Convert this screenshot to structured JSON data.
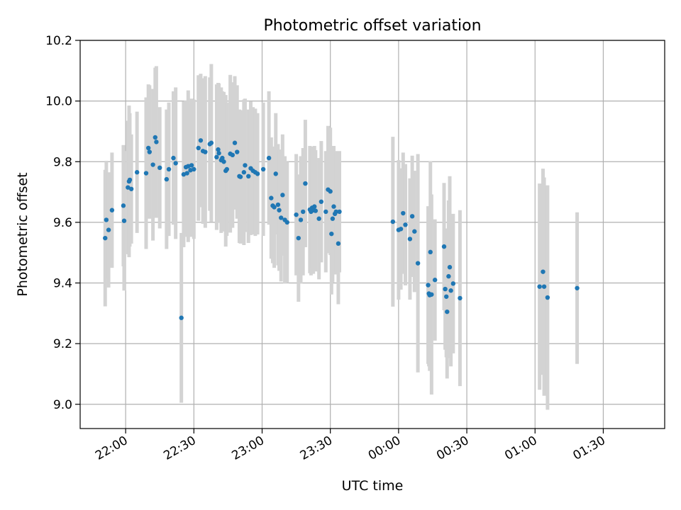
{
  "chart_data": {
    "type": "scatter",
    "title": "Photometric offset variation",
    "xlabel": "UTC time",
    "ylabel": "Photometric offset",
    "x_unit": "HH:MM UTC",
    "xlim": [
      "21:40",
      "01:57"
    ],
    "ylim": [
      8.92,
      10.2
    ],
    "grid": true,
    "xticks": [
      "22:00",
      "22:30",
      "23:00",
      "23:30",
      "00:00",
      "00:30",
      "01:00",
      "01:30"
    ],
    "yticks": [
      "9.0",
      "9.2",
      "9.4",
      "9.6",
      "9.8",
      "10.0",
      "10.2"
    ],
    "colors": {
      "marker": "#1f77b4",
      "errorbar": "#d3d3d3",
      "grid": "#b0b0b0"
    },
    "series": [
      {
        "points": [
          {
            "x": "21:51:00",
            "y": 9.548,
            "err": 0.225
          },
          {
            "x": "21:51:30",
            "y": 9.608,
            "err": 0.195
          },
          {
            "x": "21:52:30",
            "y": 9.575,
            "err": 0.19
          },
          {
            "x": "21:54:00",
            "y": 9.64,
            "err": 0.19
          },
          {
            "x": "21:59:00",
            "y": 9.655,
            "err": 0.2
          },
          {
            "x": "21:59:20",
            "y": 9.605,
            "err": 0.23
          },
          {
            "x": "22:01:00",
            "y": 9.715,
            "err": 0.22
          },
          {
            "x": "22:01:30",
            "y": 9.735,
            "err": 0.25
          },
          {
            "x": "22:01:50",
            "y": 9.74,
            "err": 0.22
          },
          {
            "x": "22:02:30",
            "y": 9.71,
            "err": 0.18
          },
          {
            "x": "22:05:00",
            "y": 9.765,
            "err": 0.2
          },
          {
            "x": "22:09:00",
            "y": 9.762,
            "err": 0.25
          },
          {
            "x": "22:10:00",
            "y": 9.845,
            "err": 0.21
          },
          {
            "x": "22:10:30",
            "y": 9.832,
            "err": 0.22
          },
          {
            "x": "22:12:00",
            "y": 9.79,
            "err": 0.25
          },
          {
            "x": "22:13:00",
            "y": 9.88,
            "err": 0.23
          },
          {
            "x": "22:13:30",
            "y": 9.865,
            "err": 0.25
          },
          {
            "x": "22:15:00",
            "y": 9.78,
            "err": 0.2
          },
          {
            "x": "22:18:00",
            "y": 9.742,
            "err": 0.23
          },
          {
            "x": "22:19:00",
            "y": 9.775,
            "err": 0.22
          },
          {
            "x": "22:21:00",
            "y": 9.812,
            "err": 0.22
          },
          {
            "x": "22:22:00",
            "y": 9.795,
            "err": 0.25
          },
          {
            "x": "22:24:30",
            "y": 9.285,
            "err": 0.28
          },
          {
            "x": "22:25:30",
            "y": 9.758,
            "err": 0.24
          },
          {
            "x": "22:26:30",
            "y": 9.782,
            "err": 0.22
          },
          {
            "x": "22:27:00",
            "y": 9.762,
            "err": 0.21
          },
          {
            "x": "22:27:30",
            "y": 9.785,
            "err": 0.25
          },
          {
            "x": "22:28:30",
            "y": 9.772,
            "err": 0.22
          },
          {
            "x": "22:29:00",
            "y": 9.788,
            "err": 0.22
          },
          {
            "x": "22:30:00",
            "y": 9.775,
            "err": 0.23
          },
          {
            "x": "22:32:00",
            "y": 9.845,
            "err": 0.24
          },
          {
            "x": "22:33:00",
            "y": 9.87,
            "err": 0.22
          },
          {
            "x": "22:34:00",
            "y": 9.835,
            "err": 0.24
          },
          {
            "x": "22:35:00",
            "y": 9.832,
            "err": 0.25
          },
          {
            "x": "22:37:00",
            "y": 9.858,
            "err": 0.22
          },
          {
            "x": "22:37:40",
            "y": 9.862,
            "err": 0.26
          },
          {
            "x": "22:40:00",
            "y": 9.815,
            "err": 0.24
          },
          {
            "x": "22:40:40",
            "y": 9.84,
            "err": 0.22
          },
          {
            "x": "22:41:00",
            "y": 9.828,
            "err": 0.23
          },
          {
            "x": "22:42:00",
            "y": 9.805,
            "err": 0.24
          },
          {
            "x": "22:42:30",
            "y": 9.812,
            "err": 0.22
          },
          {
            "x": "22:43:10",
            "y": 9.8,
            "err": 0.23
          },
          {
            "x": "22:44:00",
            "y": 9.77,
            "err": 0.25
          },
          {
            "x": "22:44:30",
            "y": 9.775,
            "err": 0.22
          },
          {
            "x": "22:46:00",
            "y": 9.826,
            "err": 0.26
          },
          {
            "x": "22:47:00",
            "y": 9.822,
            "err": 0.24
          },
          {
            "x": "22:48:00",
            "y": 9.862,
            "err": 0.22
          },
          {
            "x": "22:49:00",
            "y": 9.832,
            "err": 0.22
          },
          {
            "x": "22:50:00",
            "y": 9.752,
            "err": 0.22
          },
          {
            "x": "22:50:30",
            "y": 9.75,
            "err": 0.22
          },
          {
            "x": "22:52:00",
            "y": 9.765,
            "err": 0.24
          },
          {
            "x": "22:52:30",
            "y": 9.788,
            "err": 0.22
          },
          {
            "x": "22:54:00",
            "y": 9.752,
            "err": 0.22
          },
          {
            "x": "22:55:00",
            "y": 9.778,
            "err": 0.22
          },
          {
            "x": "22:56:00",
            "y": 9.77,
            "err": 0.21
          },
          {
            "x": "22:57:00",
            "y": 9.765,
            "err": 0.21
          },
          {
            "x": "22:58:00",
            "y": 9.76,
            "err": 0.2
          },
          {
            "x": "23:00:30",
            "y": 9.775,
            "err": 0.22
          },
          {
            "x": "23:03:00",
            "y": 9.812,
            "err": 0.22
          },
          {
            "x": "23:04:00",
            "y": 9.68,
            "err": 0.2
          },
          {
            "x": "23:04:40",
            "y": 9.655,
            "err": 0.19
          },
          {
            "x": "23:05:20",
            "y": 9.65,
            "err": 0.2
          },
          {
            "x": "23:06:00",
            "y": 9.76,
            "err": 0.2
          },
          {
            "x": "23:07:00",
            "y": 9.658,
            "err": 0.2
          },
          {
            "x": "23:07:30",
            "y": 9.64,
            "err": 0.2
          },
          {
            "x": "23:08:20",
            "y": 9.615,
            "err": 0.21
          },
          {
            "x": "23:09:00",
            "y": 9.69,
            "err": 0.2
          },
          {
            "x": "23:10:00",
            "y": 9.608,
            "err": 0.21
          },
          {
            "x": "23:11:00",
            "y": 9.6,
            "err": 0.2
          },
          {
            "x": "23:15:00",
            "y": 9.625,
            "err": 0.2
          },
          {
            "x": "23:16:00",
            "y": 9.548,
            "err": 0.21
          },
          {
            "x": "23:17:00",
            "y": 9.608,
            "err": 0.21
          },
          {
            "x": "23:18:00",
            "y": 9.635,
            "err": 0.21
          },
          {
            "x": "23:19:00",
            "y": 9.728,
            "err": 0.21
          },
          {
            "x": "23:21:00",
            "y": 9.642,
            "err": 0.21
          },
          {
            "x": "23:21:30",
            "y": 9.635,
            "err": 0.21
          },
          {
            "x": "23:22:00",
            "y": 9.648,
            "err": 0.2
          },
          {
            "x": "23:22:30",
            "y": 9.64,
            "err": 0.21
          },
          {
            "x": "23:23:00",
            "y": 9.652,
            "err": 0.2
          },
          {
            "x": "23:23:30",
            "y": 9.638,
            "err": 0.2
          },
          {
            "x": "23:25:00",
            "y": 9.612,
            "err": 0.2
          },
          {
            "x": "23:26:00",
            "y": 9.668,
            "err": 0.2
          },
          {
            "x": "23:28:00",
            "y": 9.635,
            "err": 0.2
          },
          {
            "x": "23:29:00",
            "y": 9.708,
            "err": 0.21
          },
          {
            "x": "23:30:00",
            "y": 9.702,
            "err": 0.21
          },
          {
            "x": "23:30:30",
            "y": 9.562,
            "err": 0.2
          },
          {
            "x": "23:31:00",
            "y": 9.612,
            "err": 0.21
          },
          {
            "x": "23:31:30",
            "y": 9.652,
            "err": 0.2
          },
          {
            "x": "23:32:00",
            "y": 9.628,
            "err": 0.2
          },
          {
            "x": "23:32:30",
            "y": 9.635,
            "err": 0.2
          },
          {
            "x": "23:33:30",
            "y": 9.53,
            "err": 0.2
          },
          {
            "x": "23:34:00",
            "y": 9.635,
            "err": 0.2
          },
          {
            "x": "23:57:30",
            "y": 9.602,
            "err": 0.28
          },
          {
            "x": "00:00:00",
            "y": 9.575,
            "err": 0.23
          },
          {
            "x": "00:01:00",
            "y": 9.578,
            "err": 0.2
          },
          {
            "x": "00:02:00",
            "y": 9.63,
            "err": 0.2
          },
          {
            "x": "00:03:00",
            "y": 9.592,
            "err": 0.2
          },
          {
            "x": "00:05:00",
            "y": 9.545,
            "err": 0.2
          },
          {
            "x": "00:06:00",
            "y": 9.62,
            "err": 0.2
          },
          {
            "x": "00:07:00",
            "y": 9.57,
            "err": 0.2
          },
          {
            "x": "00:08:30",
            "y": 9.465,
            "err": 0.36
          },
          {
            "x": "00:13:00",
            "y": 9.393,
            "err": 0.26
          },
          {
            "x": "00:13:20",
            "y": 9.365,
            "err": 0.24
          },
          {
            "x": "00:13:40",
            "y": 9.36,
            "err": 0.25
          },
          {
            "x": "00:14:00",
            "y": 9.502,
            "err": 0.3
          },
          {
            "x": "00:14:30",
            "y": 9.362,
            "err": 0.33
          },
          {
            "x": "00:16:00",
            "y": 9.41,
            "err": 0.2
          },
          {
            "x": "00:20:00",
            "y": 9.52,
            "err": 0.21
          },
          {
            "x": "00:20:30",
            "y": 9.38,
            "err": 0.2
          },
          {
            "x": "00:21:00",
            "y": 9.355,
            "err": 0.2
          },
          {
            "x": "00:21:20",
            "y": 9.305,
            "err": 0.22
          },
          {
            "x": "00:22:00",
            "y": 9.422,
            "err": 0.25
          },
          {
            "x": "00:22:30",
            "y": 9.452,
            "err": 0.3
          },
          {
            "x": "00:23:00",
            "y": 9.375,
            "err": 0.25
          },
          {
            "x": "00:24:00",
            "y": 9.398,
            "err": 0.23
          },
          {
            "x": "00:27:00",
            "y": 9.35,
            "err": 0.29
          },
          {
            "x": "01:02:00",
            "y": 9.388,
            "err": 0.34
          },
          {
            "x": "01:03:30",
            "y": 9.437,
            "err": 0.34
          },
          {
            "x": "01:04:00",
            "y": 9.388,
            "err": 0.36
          },
          {
            "x": "01:05:30",
            "y": 9.352,
            "err": 0.37
          },
          {
            "x": "01:18:30",
            "y": 9.383,
            "err": 0.25
          }
        ]
      }
    ]
  }
}
